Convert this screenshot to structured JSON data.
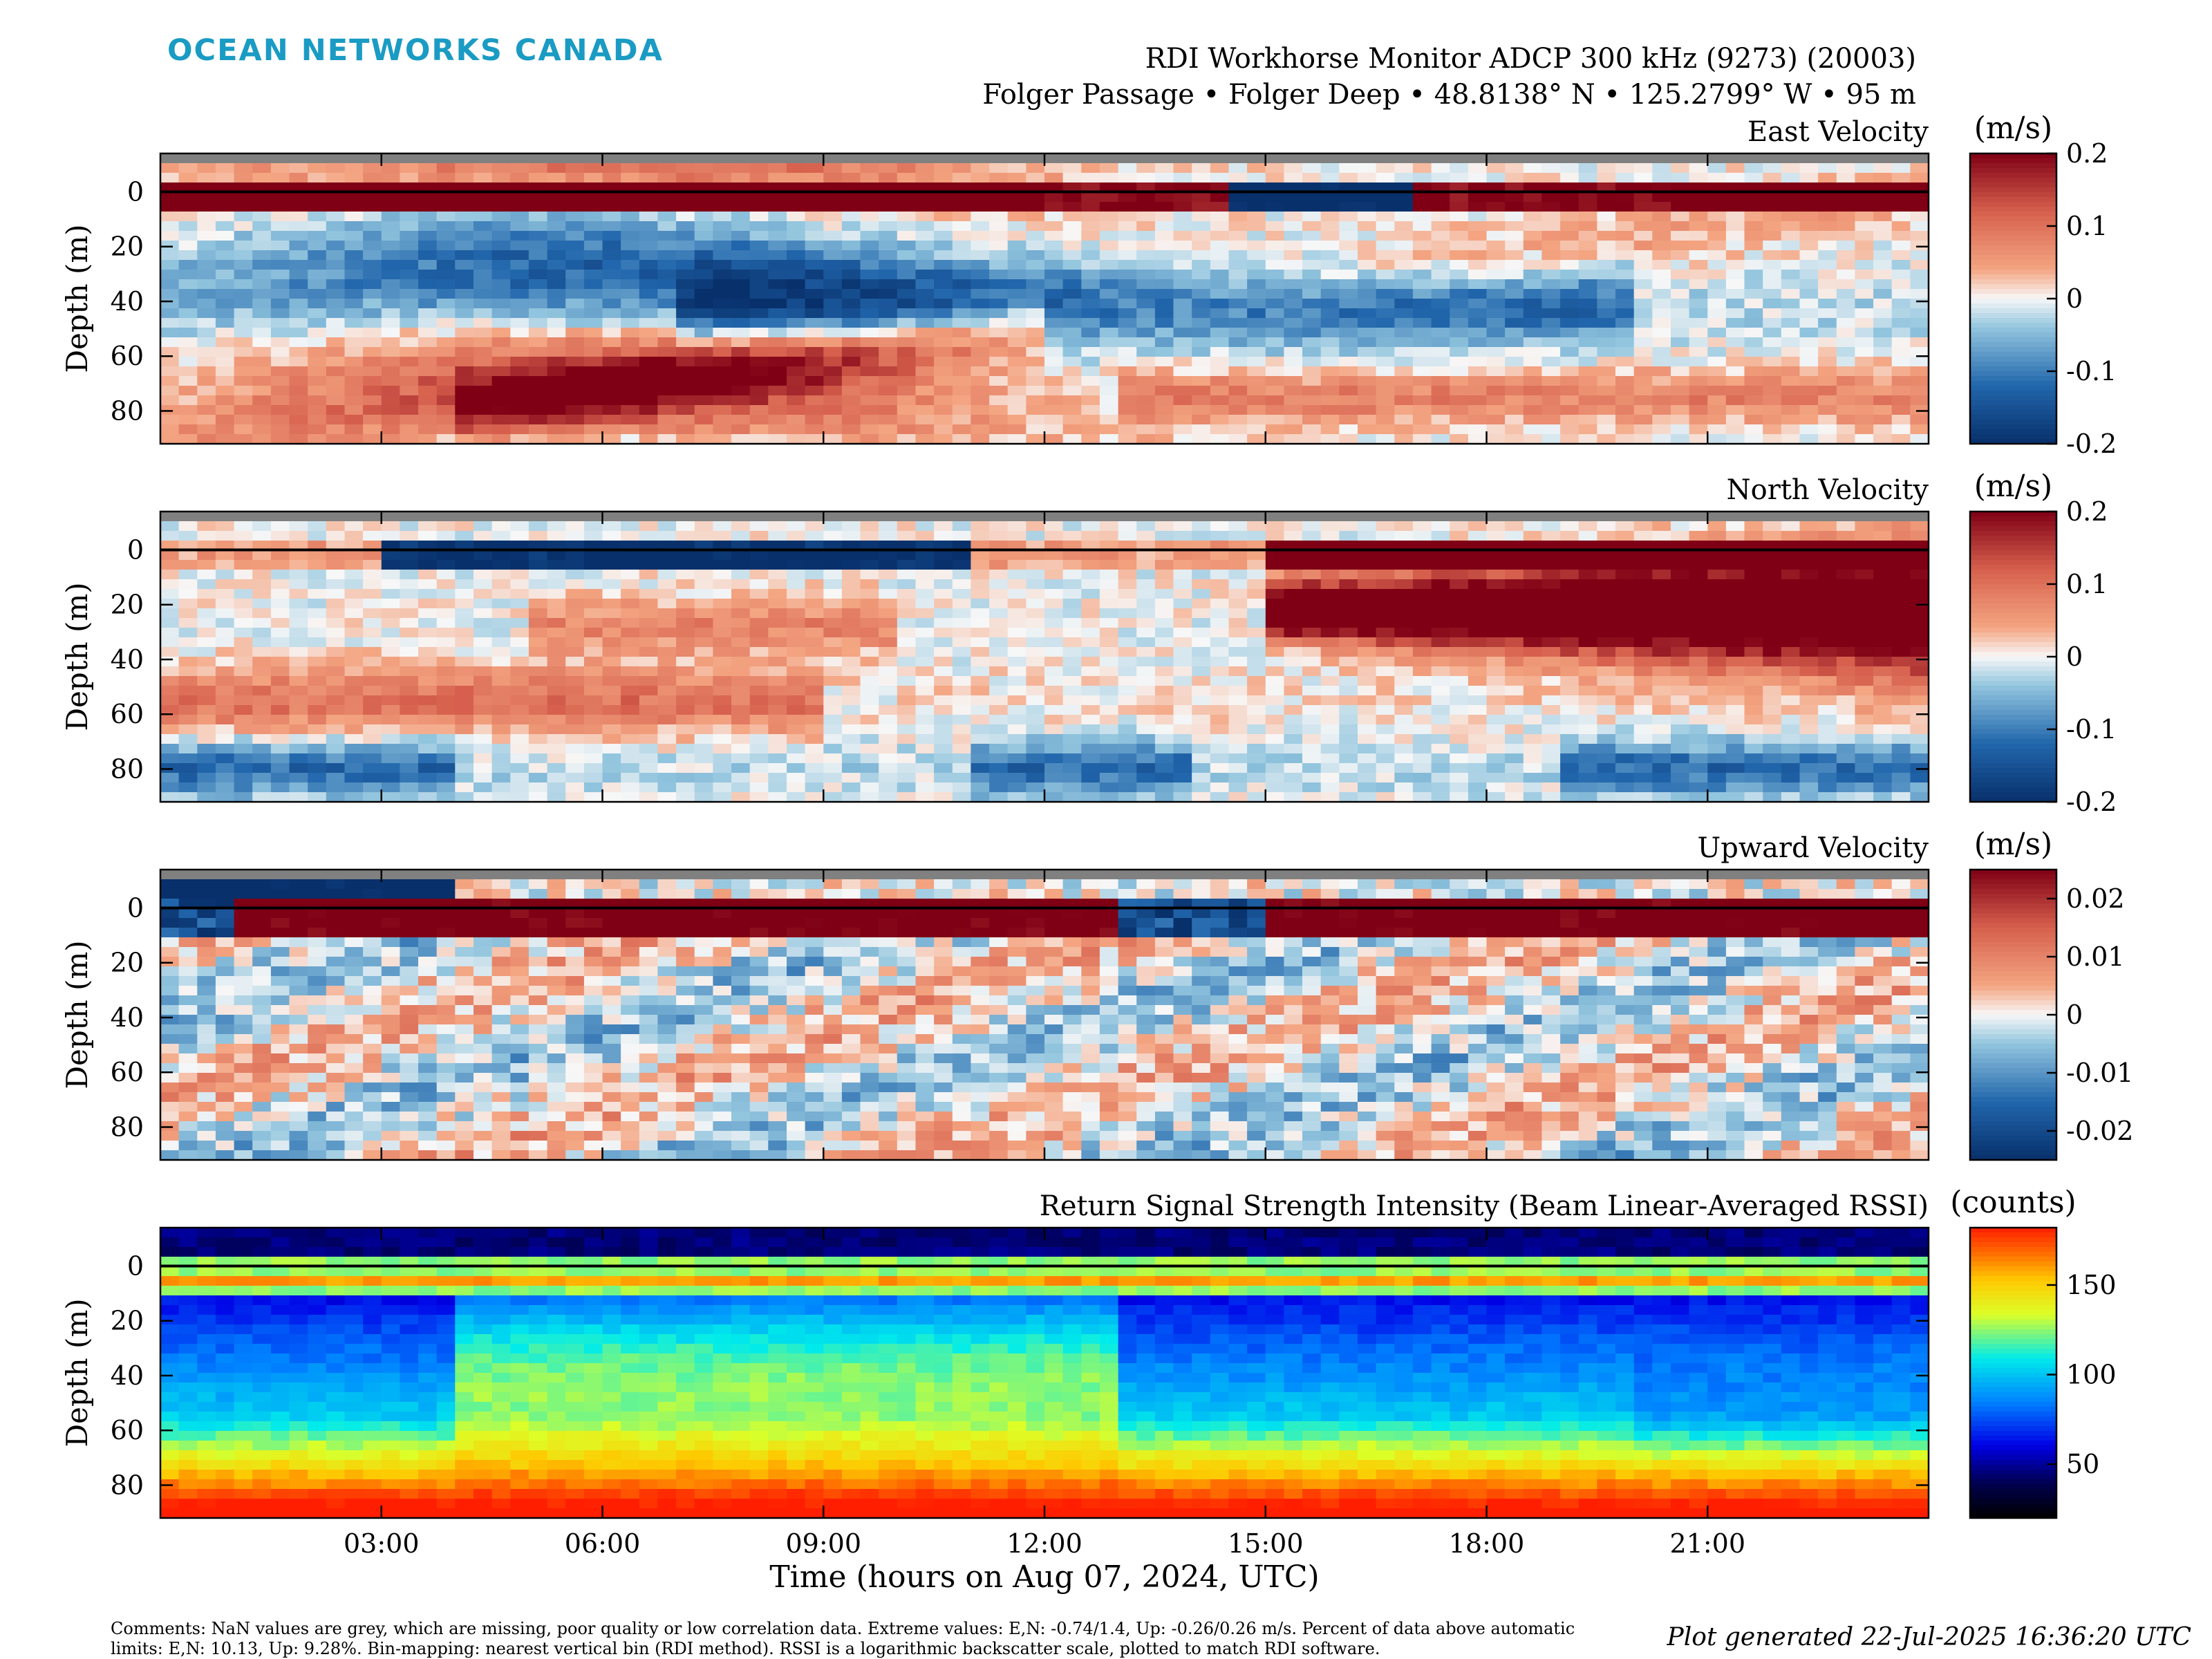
{
  "header": {
    "logo": "OCEAN NETWORKS CANADA",
    "instrument": "RDI Workhorse Monitor ADCP 300 kHz (9273) (20003)",
    "location": "Folger Passage • Folger Deep • 48.8138° N • 125.2799° W • 95 m"
  },
  "footer": {
    "comments": "Comments: NaN values are grey, which are missing, poor quality or low correlation data. Extreme values: E,N: -0.74/1.4, Up: -0.26/0.26 m/s. Percent of data above automatic limits: E,N: 10.13, Up: 9.28%. Bin-mapping: nearest vertical bin (RDI method). RSSI is a logarithmic backscatter scale, plotted to match RDI software.",
    "generated": "Plot generated 22-Jul-2025 16:36:20 UTC"
  },
  "colors": {
    "nan_grey": "#808080",
    "diverging_low": "#08306b",
    "diverging_mid": "#f7f7f7",
    "diverging_high": "#7f0015",
    "jet_low": "#000000",
    "jet_high": "#ff2a00"
  },
  "chart_data": [
    {
      "type": "heatmap",
      "title": "East Velocity",
      "ylabel": "Depth (m)",
      "colorbar_label": "(m/s)",
      "colormap": "diverging red-blue",
      "clim": [
        -0.2,
        0.2
      ],
      "colorbar_ticks": [
        "0.2",
        "0.1",
        "0",
        "-0.1",
        "-0.2"
      ],
      "colorbar_tick_values": [
        0.2,
        0.1,
        0,
        -0.1,
        -0.2
      ],
      "ylim": [
        -14,
        92
      ],
      "yticks": [
        "0",
        "20",
        "40",
        "60",
        "80"
      ],
      "ytick_values": [
        0,
        20,
        40,
        60,
        80
      ],
      "surface_line_depth": 0
    },
    {
      "type": "heatmap",
      "title": "North Velocity",
      "ylabel": "Depth (m)",
      "colorbar_label": "(m/s)",
      "colormap": "diverging red-blue",
      "clim": [
        -0.2,
        0.2
      ],
      "colorbar_ticks": [
        "0.2",
        "0.1",
        "0",
        "-0.1",
        "-0.2"
      ],
      "colorbar_tick_values": [
        0.2,
        0.1,
        0,
        -0.1,
        -0.2
      ],
      "ylim": [
        -14,
        92
      ],
      "yticks": [
        "0",
        "20",
        "40",
        "60",
        "80"
      ],
      "ytick_values": [
        0,
        20,
        40,
        60,
        80
      ],
      "surface_line_depth": 0
    },
    {
      "type": "heatmap",
      "title": "Upward Velocity",
      "ylabel": "Depth (m)",
      "colorbar_label": "(m/s)",
      "colormap": "diverging red-blue",
      "clim": [
        -0.025,
        0.025
      ],
      "colorbar_ticks": [
        "0.02",
        "0.01",
        "0",
        "-0.01",
        "-0.02"
      ],
      "colorbar_tick_values": [
        0.02,
        0.01,
        0,
        -0.01,
        -0.02
      ],
      "ylim": [
        -14,
        92
      ],
      "yticks": [
        "0",
        "20",
        "40",
        "60",
        "80"
      ],
      "ytick_values": [
        0,
        20,
        40,
        60,
        80
      ],
      "surface_line_depth": 0
    },
    {
      "type": "heatmap",
      "title": "Return Signal Strength Intensity (Beam Linear-Averaged RSSI)",
      "ylabel": "Depth (m)",
      "xlabel": "Time (hours on Aug 07, 2024, UTC)",
      "colorbar_label": "(counts)",
      "colormap": "jet",
      "clim": [
        20,
        182
      ],
      "colorbar_ticks": [
        "150",
        "100",
        "50"
      ],
      "colorbar_tick_values": [
        150,
        100,
        50
      ],
      "ylim": [
        -14,
        92
      ],
      "yticks": [
        "0",
        "20",
        "40",
        "60",
        "80"
      ],
      "ytick_values": [
        0,
        20,
        40,
        60,
        80
      ],
      "xlim_hours": [
        0,
        24
      ],
      "xticks": [
        "03:00",
        "06:00",
        "09:00",
        "12:00",
        "15:00",
        "18:00",
        "21:00"
      ],
      "xtick_values_hours": [
        3,
        6,
        9,
        12,
        15,
        18,
        21
      ],
      "surface_line_depth": 0
    }
  ]
}
